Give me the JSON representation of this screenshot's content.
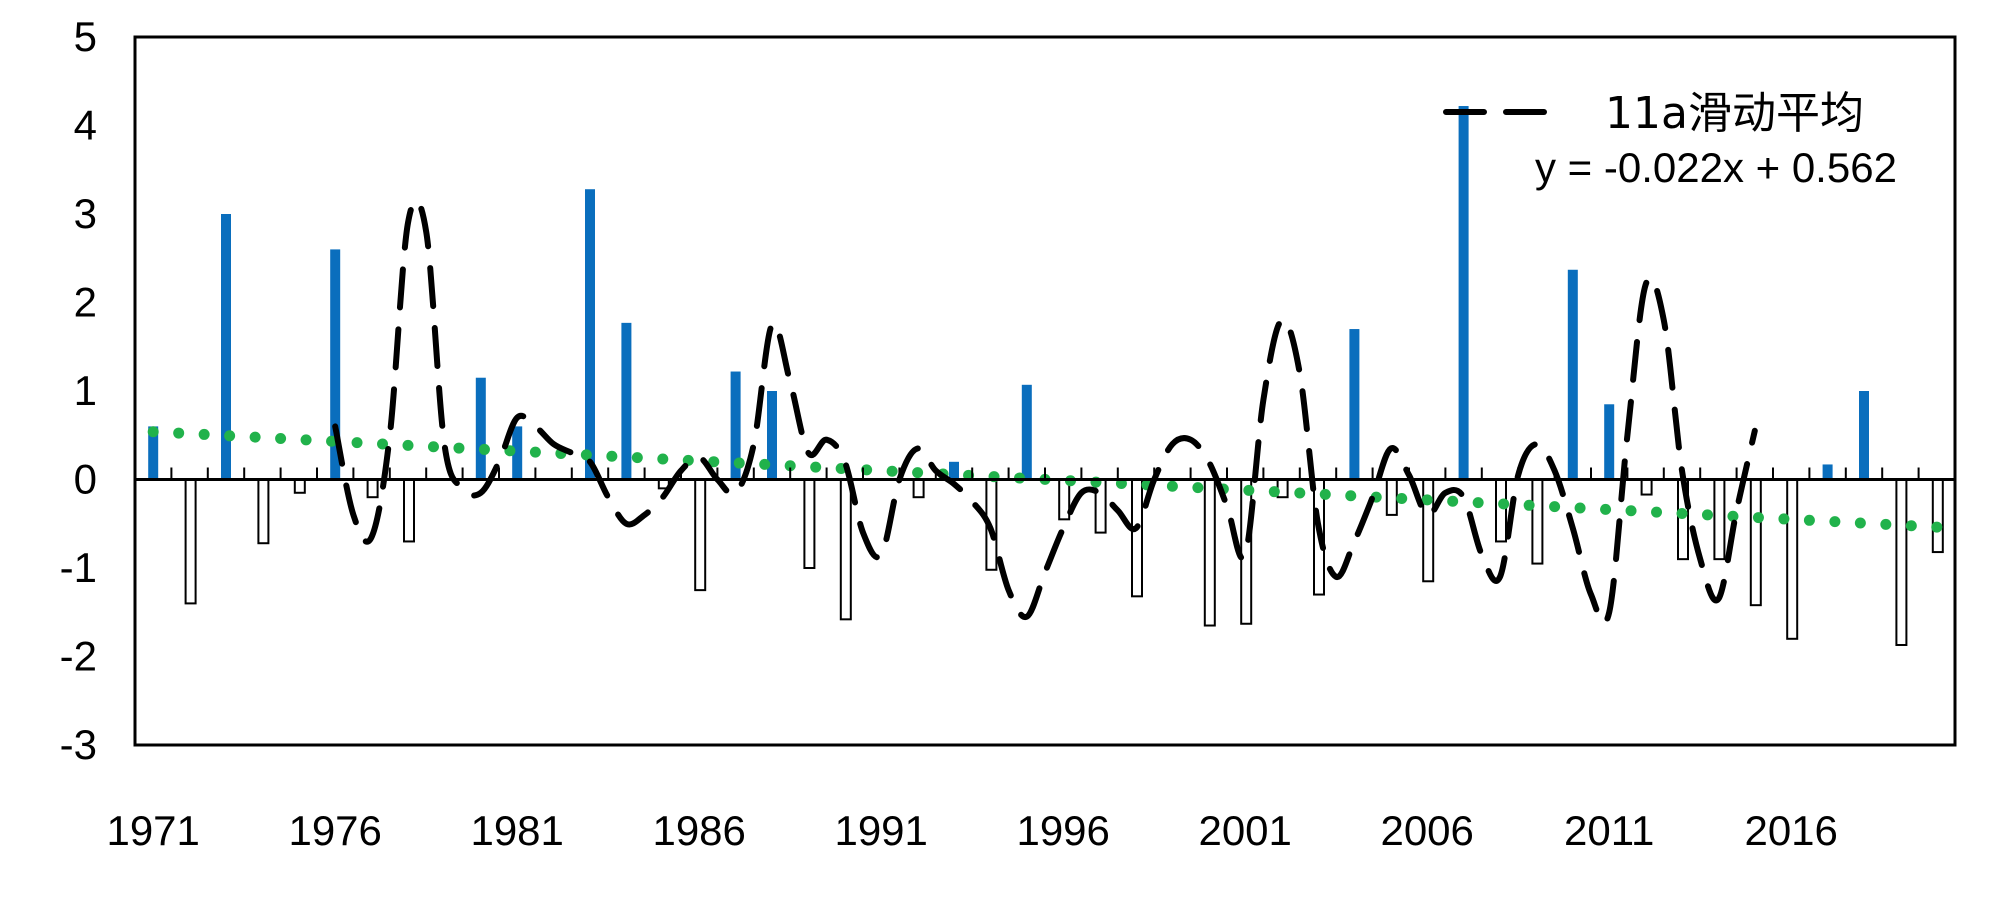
{
  "chart_data": {
    "type": "bar",
    "x": [
      1971,
      1972,
      1973,
      1974,
      1975,
      1976,
      1977,
      1978,
      1979,
      1980,
      1981,
      1982,
      1983,
      1984,
      1985,
      1986,
      1987,
      1988,
      1989,
      1990,
      1991,
      1992,
      1993,
      1994,
      1995,
      1996,
      1997,
      1998,
      1999,
      2000,
      2001,
      2002,
      2003,
      2004,
      2005,
      2006,
      2007,
      2008,
      2009,
      2010,
      2011,
      2012,
      2013,
      2014,
      2015,
      2016,
      2017,
      2018,
      2019,
      2020
    ],
    "xticks": [
      "1971",
      "1976",
      "1981",
      "1986",
      "1991",
      "1996",
      "2001",
      "2006",
      "2011",
      "2016"
    ],
    "yticks": [
      "-3",
      "-2",
      "-1",
      "0",
      "1",
      "2",
      "3",
      "4",
      "5"
    ],
    "ylim": [
      -3,
      5
    ],
    "series": [
      {
        "kind": "bar",
        "values": [
          0.6,
          -1.4,
          3.0,
          -0.72,
          -0.15,
          2.6,
          -0.2,
          -0.7,
          0.0,
          1.15,
          0.6,
          0.0,
          3.28,
          1.77,
          -0.1,
          -1.25,
          1.22,
          1.0,
          -1.0,
          -1.58,
          0.0,
          -0.2,
          0.2,
          -1.02,
          1.07,
          -0.45,
          -0.6,
          -1.32,
          0.0,
          -1.65,
          -1.63,
          -0.2,
          -1.3,
          1.7,
          -0.4,
          -1.15,
          4.22,
          -0.7,
          -0.95,
          2.37,
          0.85,
          -0.17,
          -0.9,
          -0.9,
          -1.42,
          -1.8,
          0.17,
          1.0,
          -1.87,
          -0.82
        ],
        "positive_color": "#0a6ebd",
        "negative_color": "#ffffff"
      },
      {
        "kind": "line",
        "name": "11a滑动平均",
        "x": [
          1976,
          1976.5,
          1977,
          1977.5,
          1978,
          1978.5,
          1979,
          1979.5,
          1980,
          1980.5,
          1981,
          1981.5,
          1982,
          1982.5,
          1983,
          1983.5,
          1984,
          1984.5,
          1985,
          1985.5,
          1986,
          1986.5,
          1987,
          1987.5,
          1988,
          1988.5,
          1989,
          1989.5,
          1990,
          1990.5,
          1991,
          1991.5,
          1992,
          1992.5,
          1993,
          1993.5,
          1994,
          1994.5,
          1995,
          1995.5,
          1996,
          1996.5,
          1997,
          1997.5,
          1998,
          1998.5,
          1999,
          1999.5,
          2000,
          2000.5,
          2001,
          2001.5,
          2002,
          2002.5,
          2003,
          2003.5,
          2004,
          2004.5,
          2005,
          2005.5,
          2006,
          2006.5,
          2007,
          2007.5,
          2008,
          2008.5,
          2009,
          2009.5,
          2010,
          2010.5,
          2011,
          2011.5,
          2012,
          2012.5,
          2013,
          2013.5,
          2014,
          2014.5,
          2015
        ],
        "values": [
          0.6,
          -0.4,
          -0.65,
          0.5,
          2.9,
          2.8,
          0.4,
          -0.1,
          -0.15,
          0.2,
          0.7,
          0.6,
          0.4,
          0.3,
          0.2,
          -0.2,
          -0.5,
          -0.4,
          -0.2,
          0.1,
          0.25,
          0.0,
          -0.15,
          0.4,
          1.75,
          1.1,
          0.3,
          0.45,
          0.2,
          -0.6,
          -0.85,
          0.0,
          0.35,
          0.1,
          -0.05,
          -0.25,
          -0.55,
          -1.25,
          -1.55,
          -1.05,
          -0.55,
          -0.15,
          -0.15,
          -0.35,
          -0.55,
          0.0,
          0.4,
          0.45,
          0.2,
          -0.3,
          -0.85,
          0.9,
          1.8,
          1.2,
          -0.5,
          -1.1,
          -0.7,
          -0.2,
          0.35,
          0.05,
          -0.4,
          -0.15,
          -0.2,
          -0.85,
          -1.1,
          0.05,
          0.4,
          0.1,
          -0.55,
          -1.3,
          -1.5,
          0.5,
          2.2,
          1.8,
          0.1,
          -0.9,
          -1.35,
          -0.35,
          0.55
        ],
        "color": "#000000",
        "style": "dashed"
      },
      {
        "kind": "trend",
        "equation": "y = -0.022x + 0.562",
        "slope": -0.022,
        "intercept": 0.562,
        "color": "#21b24b",
        "style": "dotted"
      }
    ],
    "legend_position": "top-right",
    "grid": false
  }
}
